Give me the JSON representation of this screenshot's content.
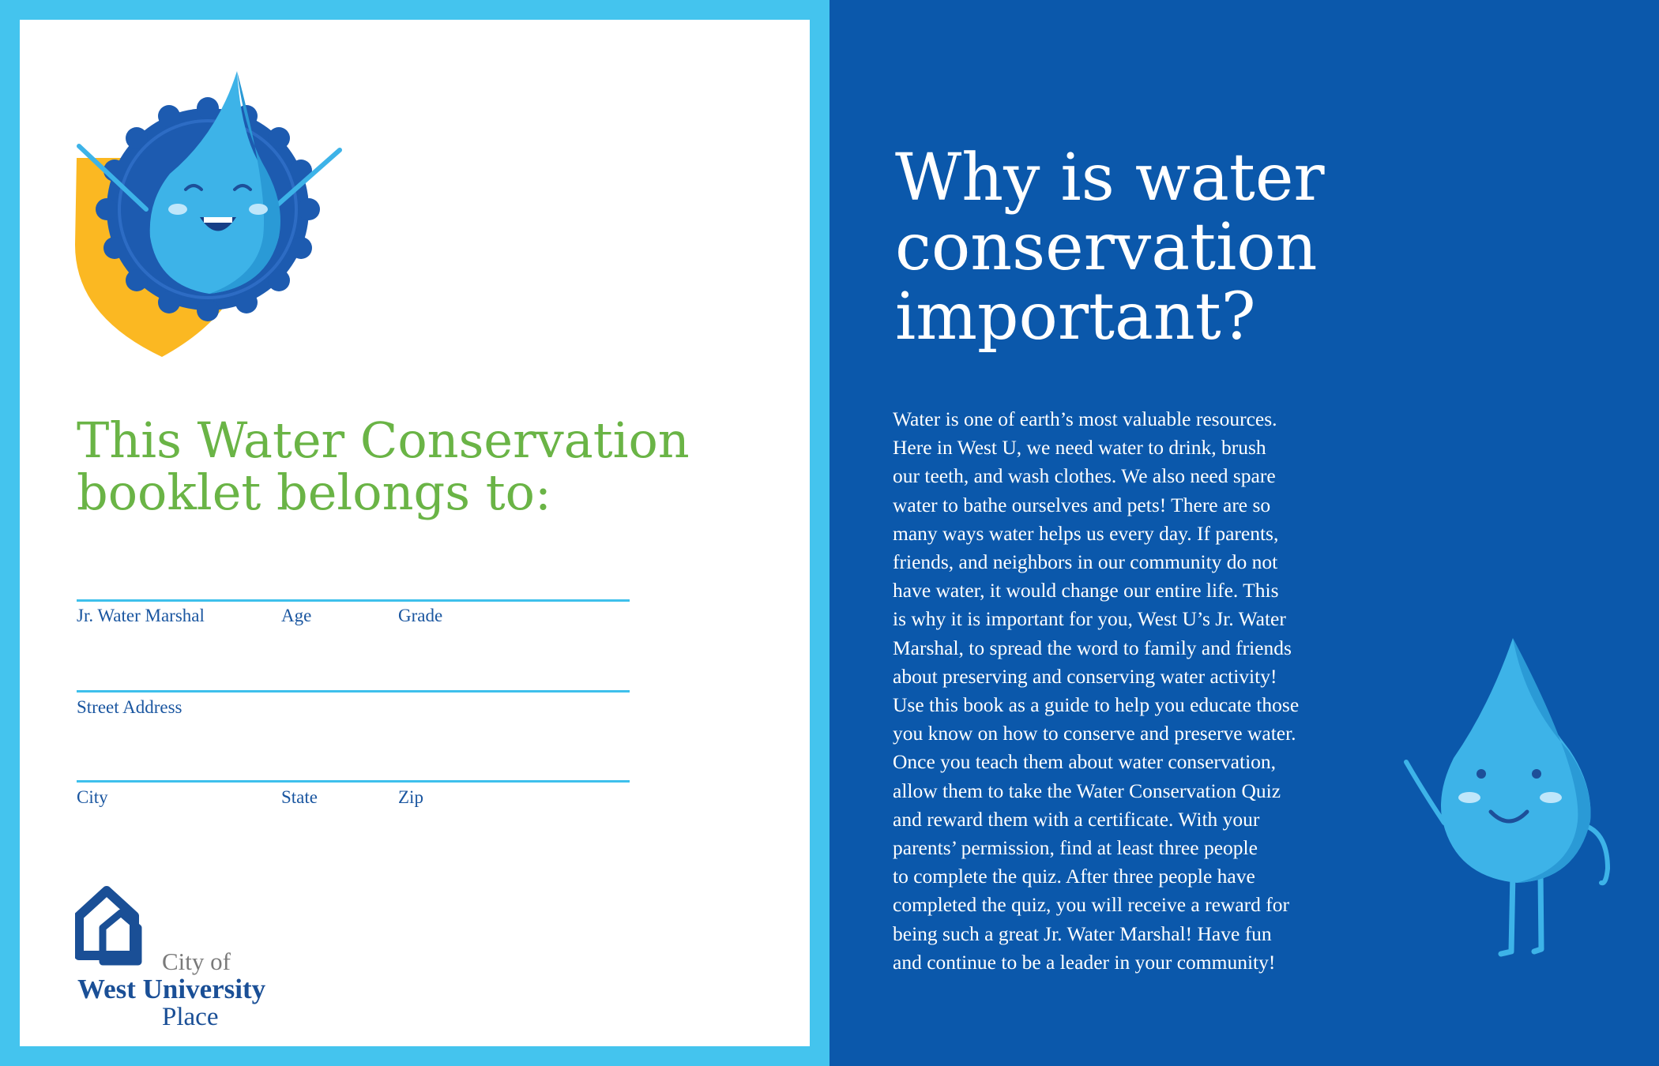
{
  "left_page": {
    "heading_lines": [
      "This Water Conservation",
      "booklet belongs to:"
    ],
    "form": {
      "row1": [
        "Jr. Water Marshal",
        "Age",
        "Grade"
      ],
      "row2": [
        "Street Address"
      ],
      "row3": [
        "City",
        "State",
        "Zip"
      ]
    },
    "logo": {
      "city_of": "City of",
      "west_university": "West University",
      "place": "Place"
    }
  },
  "right_page": {
    "heading_lines": [
      "Why is water",
      "conservation",
      "important?"
    ],
    "body_lines": [
      "Water is one of earth’s most valuable resources.",
      "Here in West U, we need water to drink, brush",
      "our teeth, and wash clothes. We also need spare",
      "water to bathe ourselves and pets! There are so",
      "many ways water helps us every day. If parents,",
      "friends, and neighbors in our community do not",
      "have water, it would change our entire life. This",
      "is why it is important for you, West U’s Jr. Water",
      "Marshal, to spread the word to family and friends",
      "about preserving and conserving water activity!",
      "Use this book as a guide to help you educate those",
      "you know on how to conserve and preserve water.",
      "Once you teach them about water conservation,",
      "allow them to take the Water Conservation Quiz",
      "and reward them with a certificate. With your",
      "parents’ permission, find at least three people",
      "to complete the quiz. After three people have",
      "completed the quiz, you will receive a reward for",
      "being such a great Jr. Water Marshal! Have fun",
      "and continue to be a leader in your community!"
    ]
  },
  "colors": {
    "frame": "#44c4ee",
    "right_background": "#0b58ab",
    "heading_green": "#6ab446",
    "label_blue": "#1a56a0",
    "droplet": "#3db3e8",
    "shield_yellow": "#fbb822"
  },
  "icons": [
    "badge-droplet-mascot",
    "waving-droplet-mascot",
    "city-house-logo-icon"
  ]
}
